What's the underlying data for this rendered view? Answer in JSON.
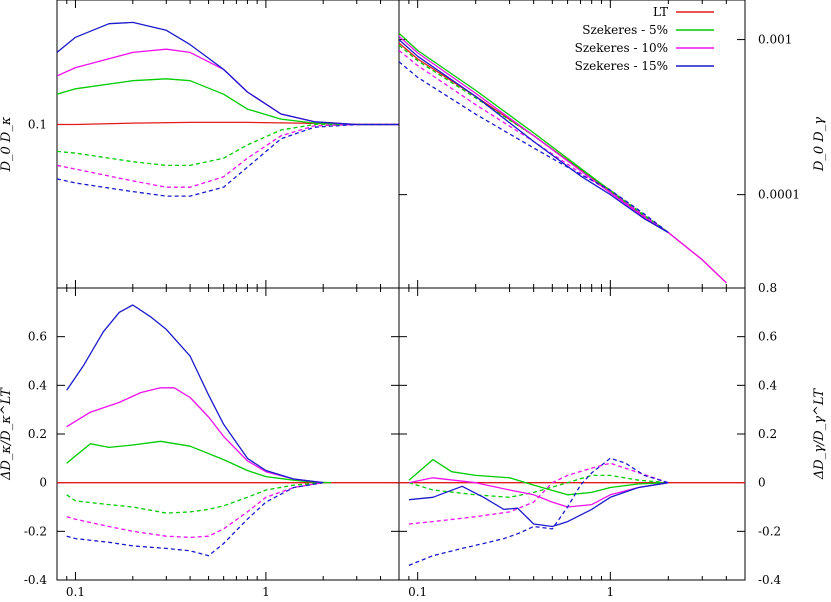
{
  "chart_data": [
    {
      "type": "line",
      "panel": "top-left",
      "xscale": "log",
      "yscale": "log",
      "xlim": [
        0.08,
        5
      ],
      "ylim": [
        0.03,
        0.25
      ],
      "ylabel": "D_0 D_κ",
      "yticks": [
        {
          "v": 0.1,
          "label": "0.1"
        }
      ],
      "xticks": [],
      "series": [
        {
          "name": "LT",
          "color": "#e41a1c",
          "dash": false,
          "x": [
            0.08,
            0.1,
            0.2,
            0.4,
            0.8,
            1.5,
            3,
            5
          ],
          "y": [
            0.1,
            0.1,
            0.101,
            0.1015,
            0.1015,
            0.101,
            0.1,
            0.1
          ]
        },
        {
          "name": "Szekeres - 5%",
          "color": "#00cc00",
          "dash": false,
          "x": [
            0.08,
            0.1,
            0.2,
            0.3,
            0.4,
            0.6,
            0.8,
            1.2,
            1.8,
            3,
            5
          ],
          "y": [
            0.125,
            0.13,
            0.138,
            0.14,
            0.138,
            0.125,
            0.112,
            0.104,
            0.101,
            0.1,
            0.1
          ]
        },
        {
          "name": "Szekeres - 5%",
          "color": "#00cc00",
          "dash": true,
          "x": [
            0.08,
            0.1,
            0.2,
            0.3,
            0.4,
            0.6,
            0.8,
            1.2,
            1.8,
            3,
            5
          ],
          "y": [
            0.082,
            0.081,
            0.076,
            0.074,
            0.074,
            0.078,
            0.086,
            0.096,
            0.1,
            0.1,
            0.1
          ]
        },
        {
          "name": "Szekeres - 10%",
          "color": "#ee11ee",
          "dash": false,
          "x": [
            0.08,
            0.1,
            0.2,
            0.3,
            0.4,
            0.6,
            0.8,
            1.2,
            1.8,
            3,
            5
          ],
          "y": [
            0.143,
            0.152,
            0.17,
            0.174,
            0.17,
            0.15,
            0.127,
            0.108,
            0.102,
            0.1,
            0.1
          ]
        },
        {
          "name": "Szekeres - 10%",
          "color": "#ee11ee",
          "dash": true,
          "x": [
            0.08,
            0.1,
            0.2,
            0.3,
            0.4,
            0.6,
            0.8,
            1.2,
            1.8,
            3,
            5
          ],
          "y": [
            0.074,
            0.072,
            0.066,
            0.063,
            0.063,
            0.068,
            0.078,
            0.092,
            0.099,
            0.1,
            0.1
          ]
        },
        {
          "name": "Szekeres - 15%",
          "color": "#1a1acc",
          "dash": false,
          "x": [
            0.08,
            0.1,
            0.15,
            0.2,
            0.3,
            0.4,
            0.6,
            0.8,
            1.2,
            1.8,
            3,
            5
          ],
          "y": [
            0.17,
            0.19,
            0.21,
            0.212,
            0.2,
            0.18,
            0.15,
            0.127,
            0.108,
            0.102,
            0.1,
            0.1
          ]
        },
        {
          "name": "Szekeres - 15%",
          "color": "#1a1acc",
          "dash": true,
          "x": [
            0.08,
            0.1,
            0.2,
            0.3,
            0.4,
            0.6,
            0.8,
            1.2,
            1.8,
            3,
            5
          ],
          "y": [
            0.067,
            0.065,
            0.061,
            0.059,
            0.059,
            0.063,
            0.073,
            0.09,
            0.098,
            0.1,
            0.1
          ]
        }
      ]
    },
    {
      "type": "line",
      "panel": "top-right",
      "xscale": "log",
      "yscale": "log",
      "xlim": [
        0.08,
        5
      ],
      "ylim": [
        2.5e-05,
        0.0018
      ],
      "ylabel": "D_0 D_γ",
      "yticks": [
        {
          "v": 0.001,
          "label": "0.001"
        },
        {
          "v": 0.0001,
          "label": "0.0001"
        }
      ],
      "xticks": [],
      "series": [
        {
          "name": "LT",
          "color": "#e41a1c",
          "dash": false,
          "x": [
            0.08,
            0.1,
            0.2,
            0.4,
            0.7,
            1,
            1.5,
            2,
            3,
            4
          ],
          "y": [
            0.00095,
            0.00075,
            0.00043,
            0.00024,
            0.000145,
            0.000105,
            7.2e-05,
            5.7e-05,
            3.8e-05,
            2.7e-05
          ]
        },
        {
          "name": "Szekeres - 5%",
          "color": "#00cc00",
          "dash": false,
          "x": [
            0.08,
            0.1,
            0.2,
            0.4,
            0.7,
            1,
            1.5,
            2
          ],
          "y": [
            0.0011,
            0.00085,
            0.00047,
            0.00025,
            0.000148,
            0.000106,
            7.3e-05,
            5.7e-05
          ]
        },
        {
          "name": "Szekeres - 5%",
          "color": "#00cc00",
          "dash": true,
          "x": [
            0.08,
            0.1,
            0.2,
            0.4,
            0.7,
            1,
            1.5,
            2
          ],
          "y": [
            0.00092,
            0.00073,
            0.00042,
            0.00024,
            0.000145,
            0.000107,
            7.4e-05,
            5.7e-05
          ]
        },
        {
          "name": "Szekeres - 10%",
          "color": "#ee11ee",
          "dash": false,
          "x": [
            0.08,
            0.1,
            0.2,
            0.4,
            0.7,
            1,
            1.5,
            2,
            3,
            4
          ],
          "y": [
            0.00105,
            0.00082,
            0.00045,
            0.00024,
            0.000143,
            0.000103,
            7.1e-05,
            5.7e-05,
            3.8e-05,
            2.7e-05
          ]
        },
        {
          "name": "Szekeres - 10%",
          "color": "#ee11ee",
          "dash": true,
          "x": [
            0.08,
            0.1,
            0.2,
            0.4,
            0.7,
            1,
            1.5,
            2
          ],
          "y": [
            0.00085,
            0.00068,
            0.00038,
            0.00022,
            0.000138,
            0.000104,
            7.3e-05,
            5.7e-05
          ]
        },
        {
          "name": "Szekeres - 15%",
          "color": "#1a1acc",
          "dash": false,
          "x": [
            0.08,
            0.1,
            0.2,
            0.4,
            0.7,
            1,
            1.5,
            2
          ],
          "y": [
            0.001,
            0.00078,
            0.00043,
            0.00022,
            0.000132,
            0.0001,
            7e-05,
            5.7e-05
          ]
        },
        {
          "name": "Szekeres - 15%",
          "color": "#1a1acc",
          "dash": true,
          "x": [
            0.08,
            0.1,
            0.2,
            0.4,
            0.7,
            1,
            1.5,
            2
          ],
          "y": [
            0.00072,
            0.00057,
            0.00033,
            0.0002,
            0.000135,
            0.000107,
            7.5e-05,
            5.7e-05
          ]
        }
      ]
    },
    {
      "type": "line",
      "panel": "bottom-left",
      "xscale": "log",
      "yscale": "linear",
      "xlim": [
        0.08,
        5
      ],
      "ylim": [
        -0.4,
        0.8
      ],
      "ylabel": "ΔD_κ/D_κ^LT",
      "yticks": [
        {
          "v": 0.6,
          "label": "0.6"
        },
        {
          "v": 0.4,
          "label": "0.4"
        },
        {
          "v": 0.2,
          "label": "0.2"
        },
        {
          "v": 0,
          "label": "0"
        },
        {
          "v": -0.2,
          "label": "-0.2"
        },
        {
          "v": -0.4,
          "label": "-0.4"
        }
      ],
      "xticks": [
        {
          "v": 0.1,
          "label": "0.1"
        },
        {
          "v": 1,
          "label": "1"
        }
      ],
      "series": [
        {
          "name": "LT",
          "color": "#e41a1c",
          "dash": false,
          "x": [
            0.08,
            0.5,
            1,
            2,
            5
          ],
          "y": [
            0,
            0,
            0,
            0,
            0
          ]
        },
        {
          "name": "Szekeres - 5%",
          "color": "#00cc00",
          "dash": false,
          "x": [
            0.09,
            0.1,
            0.12,
            0.15,
            0.2,
            0.28,
            0.4,
            0.6,
            0.8,
            1,
            1.4,
            1.8,
            2.2
          ],
          "y": [
            0.08,
            0.11,
            0.16,
            0.145,
            0.155,
            0.17,
            0.15,
            0.095,
            0.05,
            0.025,
            0.01,
            0.002,
            0
          ]
        },
        {
          "name": "Szekeres - 5%",
          "color": "#00cc00",
          "dash": true,
          "x": [
            0.09,
            0.1,
            0.15,
            0.2,
            0.3,
            0.4,
            0.5,
            0.6,
            0.8,
            1,
            1.4,
            2
          ],
          "y": [
            -0.05,
            -0.075,
            -0.09,
            -0.1,
            -0.125,
            -0.12,
            -0.11,
            -0.095,
            -0.06,
            -0.03,
            -0.01,
            0
          ]
        },
        {
          "name": "Szekeres - 10%",
          "color": "#ee11ee",
          "dash": false,
          "x": [
            0.09,
            0.12,
            0.17,
            0.22,
            0.28,
            0.33,
            0.4,
            0.5,
            0.6,
            0.8,
            1,
            1.4,
            2
          ],
          "y": [
            0.23,
            0.29,
            0.33,
            0.37,
            0.39,
            0.39,
            0.35,
            0.27,
            0.19,
            0.09,
            0.045,
            0.015,
            0
          ]
        },
        {
          "name": "Szekeres - 10%",
          "color": "#ee11ee",
          "dash": true,
          "x": [
            0.09,
            0.1,
            0.15,
            0.2,
            0.3,
            0.4,
            0.5,
            0.6,
            0.8,
            1,
            1.4,
            2
          ],
          "y": [
            -0.14,
            -0.15,
            -0.18,
            -0.2,
            -0.22,
            -0.225,
            -0.22,
            -0.19,
            -0.12,
            -0.06,
            -0.02,
            0
          ]
        },
        {
          "name": "Szekeres - 15%",
          "color": "#1a1acc",
          "dash": false,
          "x": [
            0.09,
            0.11,
            0.14,
            0.17,
            0.2,
            0.25,
            0.3,
            0.4,
            0.5,
            0.6,
            0.8,
            1,
            1.4,
            2
          ],
          "y": [
            0.38,
            0.48,
            0.62,
            0.7,
            0.73,
            0.68,
            0.63,
            0.52,
            0.36,
            0.24,
            0.1,
            0.05,
            0.015,
            0
          ]
        },
        {
          "name": "Szekeres - 15%",
          "color": "#1a1acc",
          "dash": true,
          "x": [
            0.09,
            0.1,
            0.15,
            0.2,
            0.3,
            0.4,
            0.5,
            0.6,
            0.8,
            1,
            1.4,
            2
          ],
          "y": [
            -0.22,
            -0.23,
            -0.245,
            -0.26,
            -0.27,
            -0.28,
            -0.3,
            -0.25,
            -0.15,
            -0.08,
            -0.02,
            0
          ]
        }
      ]
    },
    {
      "type": "line",
      "panel": "bottom-right",
      "xscale": "log",
      "yscale": "linear",
      "xlim": [
        0.08,
        5
      ],
      "ylim": [
        -0.4,
        0.8
      ],
      "ylabel": "ΔD_γ/D_γ^LT",
      "yticks": [
        {
          "v": 0.8,
          "label": "0.8"
        },
        {
          "v": 0.6,
          "label": "0.6"
        },
        {
          "v": 0.4,
          "label": "0.4"
        },
        {
          "v": 0.2,
          "label": "0.2"
        },
        {
          "v": 0,
          "label": "0"
        },
        {
          "v": -0.2,
          "label": "-0.2"
        },
        {
          "v": -0.4,
          "label": "-0.4"
        }
      ],
      "xticks": [
        {
          "v": 0.1,
          "label": "0.1"
        },
        {
          "v": 1,
          "label": "1"
        }
      ],
      "series": [
        {
          "name": "LT",
          "color": "#e41a1c",
          "dash": false,
          "x": [
            0.08,
            0.5,
            1,
            2,
            5
          ],
          "y": [
            0,
            0,
            0,
            0,
            0
          ]
        },
        {
          "name": "Szekeres - 5%",
          "color": "#00cc00",
          "dash": false,
          "x": [
            0.09,
            0.12,
            0.15,
            0.2,
            0.3,
            0.4,
            0.6,
            0.8,
            1,
            1.4,
            2
          ],
          "y": [
            0.01,
            0.095,
            0.045,
            0.03,
            0.02,
            -0.01,
            -0.05,
            -0.04,
            -0.02,
            -0.005,
            0
          ]
        },
        {
          "name": "Szekeres - 5%",
          "color": "#00cc00",
          "dash": true,
          "x": [
            0.09,
            0.12,
            0.2,
            0.3,
            0.4,
            0.6,
            0.8,
            1,
            1.4,
            2
          ],
          "y": [
            0,
            -0.03,
            -0.05,
            -0.06,
            -0.04,
            0,
            0.03,
            0.03,
            0.01,
            0
          ]
        },
        {
          "name": "Szekeres - 10%",
          "color": "#ee11ee",
          "dash": false,
          "x": [
            0.09,
            0.12,
            0.2,
            0.3,
            0.4,
            0.5,
            0.6,
            0.8,
            1,
            1.4,
            2
          ],
          "y": [
            0,
            0.02,
            0,
            -0.03,
            -0.05,
            -0.08,
            -0.1,
            -0.09,
            -0.05,
            -0.02,
            0
          ]
        },
        {
          "name": "Szekeres - 10%",
          "color": "#ee11ee",
          "dash": true,
          "x": [
            0.09,
            0.12,
            0.2,
            0.3,
            0.4,
            0.5,
            0.6,
            0.8,
            1,
            1.3,
            2
          ],
          "y": [
            -0.17,
            -0.16,
            -0.14,
            -0.12,
            -0.08,
            0,
            0.03,
            0.06,
            0.08,
            0.05,
            0
          ]
        },
        {
          "name": "Szekeres - 15%",
          "color": "#1a1acc",
          "dash": false,
          "x": [
            0.09,
            0.12,
            0.17,
            0.22,
            0.28,
            0.33,
            0.4,
            0.5,
            0.6,
            0.8,
            1,
            1.4,
            2
          ],
          "y": [
            -0.07,
            -0.06,
            -0.015,
            -0.06,
            -0.11,
            -0.105,
            -0.17,
            -0.18,
            -0.16,
            -0.11,
            -0.06,
            -0.02,
            0
          ]
        },
        {
          "name": "Szekeres - 15%",
          "color": "#1a1acc",
          "dash": true,
          "x": [
            0.09,
            0.12,
            0.17,
            0.22,
            0.28,
            0.33,
            0.4,
            0.5,
            0.6,
            0.7,
            0.8,
            1,
            1.2,
            1.5,
            2
          ],
          "y": [
            -0.34,
            -0.3,
            -0.27,
            -0.25,
            -0.23,
            -0.21,
            -0.18,
            -0.19,
            -0.1,
            -0.01,
            0.04,
            0.1,
            0.08,
            0.03,
            0
          ]
        }
      ]
    }
  ],
  "legend": {
    "position": "top-right of upper-right panel",
    "items": [
      {
        "label": "LT",
        "color": "#e41a1c"
      },
      {
        "label": "Szekeres - 5%",
        "color": "#00cc00"
      },
      {
        "label": "Szekeres - 10%",
        "color": "#ee11ee"
      },
      {
        "label": "Szekeres - 15%",
        "color": "#1a1acc"
      }
    ]
  }
}
